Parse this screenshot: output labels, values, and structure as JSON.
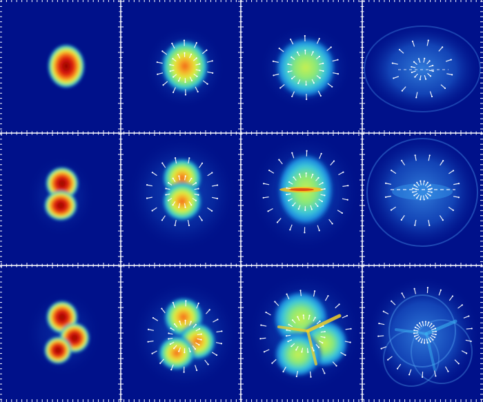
{
  "figure": {
    "rows": 3,
    "cols": 4,
    "background_color": "#00118a",
    "separator_color": "#ffffff",
    "colormap": [
      "#00118a",
      "#0a3fc0",
      "#1a86e0",
      "#2fd0d8",
      "#7ef07a",
      "#f4f03a",
      "#f89020",
      "#e02010",
      "#900000"
    ],
    "arrow_color": "#ffffff",
    "panels": [
      {
        "row": 0,
        "col": 0,
        "stage": "initial",
        "blobs": 1,
        "arrows": false
      },
      {
        "row": 0,
        "col": 1,
        "stage": "early",
        "blobs": 1,
        "arrows": true
      },
      {
        "row": 0,
        "col": 2,
        "stage": "expanding",
        "blobs": 1,
        "arrows": true
      },
      {
        "row": 0,
        "col": 3,
        "stage": "late",
        "blobs": 1,
        "arrows": true
      },
      {
        "row": 1,
        "col": 0,
        "stage": "initial",
        "blobs": 2,
        "arrows": false
      },
      {
        "row": 1,
        "col": 1,
        "stage": "early",
        "blobs": 2,
        "arrows": true
      },
      {
        "row": 1,
        "col": 2,
        "stage": "expanding",
        "blobs": 2,
        "arrows": true
      },
      {
        "row": 1,
        "col": 3,
        "stage": "late",
        "blobs": 2,
        "arrows": true
      },
      {
        "row": 2,
        "col": 0,
        "stage": "initial",
        "blobs": 3,
        "arrows": false
      },
      {
        "row": 2,
        "col": 1,
        "stage": "early",
        "blobs": 3,
        "arrows": true
      },
      {
        "row": 2,
        "col": 2,
        "stage": "expanding",
        "blobs": 3,
        "arrows": true
      },
      {
        "row": 2,
        "col": 3,
        "stage": "late",
        "blobs": 3,
        "arrows": true
      }
    ]
  }
}
